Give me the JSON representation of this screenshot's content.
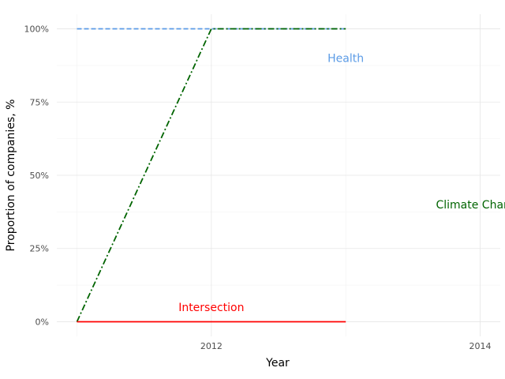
{
  "chart_data": {
    "type": "line",
    "title": "",
    "xlabel": "Year",
    "ylabel": "Proportion of companies, %",
    "xlim": [
      2010.85,
      2014.15
    ],
    "ylim": [
      -0.05,
      1.05
    ],
    "x_ticks": [
      2012,
      2014
    ],
    "x_tick_labels": [
      "2012",
      "2014"
    ],
    "y_ticks": [
      0,
      0.25,
      0.5,
      0.75,
      1.0
    ],
    "y_tick_labels": [
      "0%",
      "25%",
      "50%",
      "75%",
      "100%"
    ],
    "grid": true,
    "series": [
      {
        "name": "Health",
        "color": "#5b9be6",
        "dash": "dashed",
        "x": [
          2011,
          2012,
          2013
        ],
        "y": [
          1.0,
          1.0,
          1.0
        ]
      },
      {
        "name": "Climate Change",
        "color": "#006400",
        "dash": "dashdot",
        "x": [
          2011,
          2012,
          2013
        ],
        "y": [
          0.0,
          1.0,
          1.0
        ]
      },
      {
        "name": "Intersection",
        "color": "#ff0000",
        "dash": "solid",
        "x": [
          2011,
          2012,
          2013
        ],
        "y": [
          0.0,
          0.0,
          0.0
        ]
      }
    ],
    "annotations": [
      {
        "text": "Health",
        "x": 2013,
        "y": 0.9,
        "color": "#5b9be6"
      },
      {
        "text": "Climate Change",
        "x": 2014,
        "y": 0.4,
        "color": "#006400"
      },
      {
        "text": "Intersection",
        "x": 2012,
        "y": 0.05,
        "color": "#ff0000"
      }
    ]
  }
}
